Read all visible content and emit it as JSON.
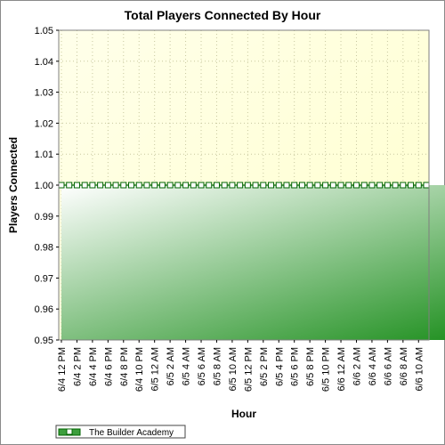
{
  "chart_data": {
    "type": "area",
    "title": "Total Players Connected By Hour",
    "xlabel": "Hour",
    "ylabel": "Players Connected",
    "ylim": [
      0.95,
      1.05
    ],
    "y_ticks": [
      "0.95",
      "0.96",
      "0.97",
      "0.98",
      "0.99",
      "1.00",
      "1.01",
      "1.02",
      "1.03",
      "1.04",
      "1.05"
    ],
    "x_tick_labels": [
      "6/4 12 PM",
      "6/4 2 PM",
      "6/4 4 PM",
      "6/4 6 PM",
      "6/4 8 PM",
      "6/4 10 PM",
      "6/5 12 AM",
      "6/5 2 AM",
      "6/5 4 AM",
      "6/5 6 AM",
      "6/5 8 AM",
      "6/5 10 AM",
      "6/5 12 PM",
      "6/5 2 PM",
      "6/5 4 PM",
      "6/5 6 PM",
      "6/5 8 PM",
      "6/5 10 PM",
      "6/6 12 AM",
      "6/6 2 AM",
      "6/6 4 AM",
      "6/6 6 AM",
      "6/6 8 AM",
      "6/6 10 AM"
    ],
    "grid": true,
    "legend_position": "bottom-left",
    "series": [
      {
        "name": "The Builder Academy",
        "segments": [
          {
            "start_hour_index": 0,
            "values": [
              1,
              1,
              1,
              1,
              1,
              1,
              1,
              1,
              1,
              1,
              1,
              1,
              1,
              1,
              1,
              1,
              1,
              1,
              1,
              1,
              1,
              1,
              1,
              1,
              1,
              1,
              1,
              1,
              1,
              1,
              1,
              1,
              1,
              1,
              1,
              1,
              1,
              1,
              1,
              1,
              1,
              1,
              1,
              1,
              1,
              1,
              1,
              1
            ]
          },
          {
            "start_hour_index": 52,
            "values": [
              1,
              1,
              1,
              1,
              1,
              1,
              1,
              1,
              1,
              1,
              1,
              1,
              1,
              1,
              1,
              1,
              1,
              1,
              1
            ]
          }
        ]
      }
    ],
    "colors": {
      "plot_background": "#fffff0",
      "area_dark": "#008000",
      "area_light": "#ffffff",
      "line": "#006400",
      "marker_fill": "#ffffff"
    }
  }
}
